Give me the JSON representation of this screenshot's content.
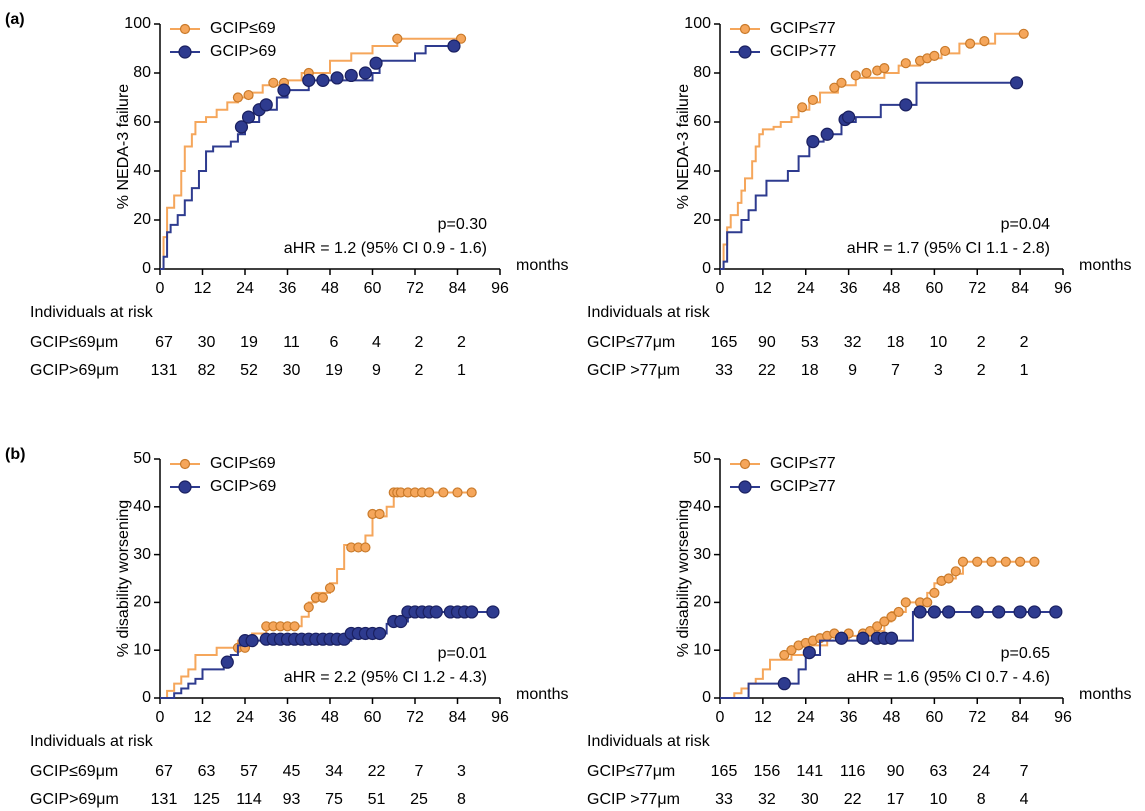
{
  "chart_data": [
    {
      "type": "step",
      "panel_label": "(a)",
      "y_label": "% NEDA-3 failure",
      "x_label": "months",
      "xlim": [
        0,
        96
      ],
      "xticks": [
        0,
        12,
        24,
        36,
        48,
        60,
        72,
        84,
        96
      ],
      "ylim": [
        0,
        100
      ],
      "yticks": [
        0,
        20,
        40,
        60,
        80,
        100
      ],
      "annotations": [
        {
          "text": "p=0.30",
          "color": "#000000"
        },
        {
          "text": "aHR = 1.2 (95% CI 0.9 - 1.6)",
          "color": "#000000"
        }
      ],
      "series": [
        {
          "name": "GCIP≤69",
          "color": "#f5a65b",
          "x": [
            0,
            1,
            2,
            4,
            6,
            7,
            9,
            10,
            13,
            16,
            19,
            22,
            26,
            29,
            36,
            40,
            48,
            54,
            60,
            67,
            85
          ],
          "values": [
            0,
            13,
            25,
            30,
            40,
            50,
            55,
            60,
            62,
            65,
            68,
            70,
            72,
            75,
            77,
            80,
            85,
            88,
            91,
            94,
            94
          ],
          "censored": {
            "x": [
              22,
              25,
              32,
              35,
              42,
              67,
              85
            ],
            "values": [
              70,
              71,
              76,
              76,
              80,
              94,
              94
            ]
          }
        },
        {
          "name": "GCIP>69",
          "color": "#2e3b8f",
          "x": [
            0,
            1,
            2,
            3,
            5,
            7,
            9,
            11,
            13,
            15,
            20,
            22,
            24,
            28,
            33,
            36,
            42,
            60,
            62,
            72,
            75,
            83
          ],
          "values": [
            0,
            5,
            15,
            18,
            22,
            28,
            33,
            40,
            48,
            50,
            52,
            55,
            60,
            65,
            70,
            73,
            77,
            80,
            85,
            88,
            91,
            91
          ],
          "censored": {
            "x": [
              23,
              25,
              28,
              30,
              35,
              42,
              46,
              50,
              54,
              58,
              61,
              83
            ],
            "values": [
              58,
              62,
              65,
              67,
              73,
              77,
              77,
              78,
              79,
              80,
              84,
              91
            ]
          }
        }
      ],
      "risk_table": {
        "title": "Individuals at risk",
        "rows": [
          {
            "name": "GCIP≤69μm",
            "values": [
              67,
              30,
              19,
              11,
              6,
              4,
              2,
              2
            ]
          },
          {
            "name": "GCIP>69μm",
            "values": [
              131,
              82,
              52,
              30,
              19,
              9,
              2,
              1
            ]
          }
        ]
      }
    },
    {
      "type": "step",
      "y_label": "% NEDA-3 failure",
      "x_label": "months",
      "xlim": [
        0,
        96
      ],
      "xticks": [
        0,
        12,
        24,
        36,
        48,
        60,
        72,
        84,
        96
      ],
      "ylim": [
        0,
        100
      ],
      "yticks": [
        0,
        20,
        40,
        60,
        80,
        100
      ],
      "annotations": [
        {
          "text": "p=0.04",
          "color": "#4a4aa8"
        },
        {
          "text": "aHR = 1.7 (95% CI 1.1 - 2.8)",
          "color": "#000000"
        }
      ],
      "series": [
        {
          "name": "GCIP≤77",
          "color": "#f5a65b",
          "x": [
            0,
            1,
            2,
            3,
            5,
            6,
            7,
            9,
            10,
            11,
            12,
            15,
            17,
            20,
            22,
            25,
            28,
            33,
            38,
            46,
            50,
            56,
            62,
            67,
            77,
            85
          ],
          "values": [
            0,
            10,
            17,
            22,
            27,
            32,
            37,
            44,
            50,
            55,
            57,
            58,
            60,
            62,
            65,
            68,
            72,
            75,
            78,
            80,
            83,
            86,
            88,
            92,
            96,
            96
          ],
          "censored": {
            "x": [
              23,
              26,
              32,
              34,
              38,
              41,
              44,
              46,
              52,
              56,
              58,
              60,
              63,
              70,
              74,
              85
            ],
            "values": [
              66,
              69,
              74,
              76,
              79,
              80,
              81,
              82,
              84,
              85,
              86,
              87,
              89,
              92,
              93,
              96
            ]
          }
        },
        {
          "name": "GCIP>77",
          "color": "#2e3b8f",
          "x": [
            0,
            1,
            2,
            6,
            8,
            10,
            13,
            19,
            22,
            25,
            29,
            34,
            38,
            45,
            52,
            55,
            83
          ],
          "values": [
            0,
            3,
            15,
            20,
            24,
            30,
            36,
            40,
            46,
            52,
            55,
            60,
            62,
            67,
            67,
            76,
            76
          ],
          "censored": {
            "x": [
              26,
              30,
              35,
              36,
              52,
              83
            ],
            "values": [
              52,
              55,
              61,
              62,
              67,
              76
            ]
          }
        }
      ],
      "risk_table": {
        "title": "Individuals at risk",
        "rows": [
          {
            "name": "GCIP≤77μm",
            "values": [
              165,
              90,
              53,
              32,
              18,
              10,
              2,
              2
            ]
          },
          {
            "name": "GCIP >77μm",
            "values": [
              33,
              22,
              18,
              9,
              7,
              3,
              2,
              1
            ]
          }
        ]
      }
    },
    {
      "type": "step",
      "panel_label": "(b)",
      "y_label": "% disability worsening",
      "x_label": "months",
      "xlim": [
        0,
        96
      ],
      "xticks": [
        0,
        12,
        24,
        36,
        48,
        60,
        72,
        84,
        96
      ],
      "ylim": [
        0,
        50
      ],
      "yticks": [
        0,
        10,
        20,
        30,
        40,
        50
      ],
      "annotations": [
        {
          "text": "p=0.01",
          "color": "#4a4aa8"
        },
        {
          "text": "aHR = 2.2 (95% CI 1.2 - 4.3)",
          "color": "#000000"
        }
      ],
      "series": [
        {
          "name": "GCIP≤69",
          "color": "#f5a65b",
          "x": [
            0,
            2,
            4,
            6,
            8,
            10,
            16,
            22,
            26,
            30,
            40,
            42,
            44,
            48,
            50,
            52,
            58,
            60,
            64,
            66,
            88
          ],
          "values": [
            0,
            1.5,
            3,
            4.5,
            6,
            9,
            10.5,
            12,
            13.5,
            15,
            17,
            20,
            22,
            24,
            27,
            32,
            34,
            38,
            40,
            43,
            43
          ],
          "censored": {
            "x": [
              22,
              24,
              30,
              32,
              34,
              36,
              38,
              42,
              44,
              46,
              48,
              54,
              56,
              58,
              60,
              62,
              66,
              67,
              68,
              70,
              72,
              74,
              76,
              80,
              84,
              88
            ],
            "values": [
              10.5,
              10.5,
              15,
              15,
              15,
              15,
              15,
              19,
              21,
              21,
              23,
              31.5,
              31.5,
              31.5,
              38.5,
              38.5,
              43,
              43,
              43,
              43,
              43,
              43,
              43,
              43,
              43,
              43
            ]
          }
        },
        {
          "name": "GCIP>69",
          "color": "#2e3b8f",
          "x": [
            0,
            4,
            6,
            8,
            10,
            12,
            18,
            20,
            22,
            24,
            54,
            64,
            66,
            70,
            94
          ],
          "values": [
            0,
            1,
            2,
            3,
            4,
            6,
            7.5,
            9,
            11,
            12,
            13.5,
            15.5,
            16,
            18,
            18
          ],
          "censored": {
            "x": [
              19,
              24,
              26,
              30,
              32,
              34,
              36,
              38,
              40,
              42,
              44,
              46,
              48,
              50,
              52,
              54,
              56,
              58,
              60,
              62,
              66,
              68,
              70,
              72,
              74,
              76,
              78,
              82,
              84,
              86,
              88,
              94
            ],
            "values": [
              7.5,
              12,
              12,
              12.3,
              12.3,
              12.3,
              12.3,
              12.3,
              12.3,
              12.3,
              12.3,
              12.3,
              12.3,
              12.3,
              12.3,
              13.5,
              13.5,
              13.5,
              13.5,
              13.5,
              16,
              16,
              18,
              18,
              18,
              18,
              18,
              18,
              18,
              18,
              18,
              18
            ]
          }
        }
      ],
      "risk_table": {
        "title": "Individuals at risk",
        "rows": [
          {
            "name": "GCIP≤69μm",
            "values": [
              67,
              63,
              57,
              45,
              34,
              22,
              7,
              3
            ]
          },
          {
            "name": "GCIP>69μm",
            "values": [
              131,
              125,
              114,
              93,
              75,
              51,
              25,
              8
            ]
          }
        ]
      }
    },
    {
      "type": "step",
      "y_label": "% disability worsening",
      "x_label": "months",
      "xlim": [
        0,
        96
      ],
      "xticks": [
        0,
        12,
        24,
        36,
        48,
        60,
        72,
        84,
        96
      ],
      "ylim": [
        0,
        50
      ],
      "yticks": [
        0,
        10,
        20,
        30,
        40,
        50
      ],
      "annotations": [
        {
          "text": "p=0.65",
          "color": "#000000"
        },
        {
          "text": "aHR = 1.6 (95% CI 0.7 - 4.6)",
          "color": "#000000"
        }
      ],
      "series": [
        {
          "name": "GCIP≤77",
          "color": "#f5a65b",
          "x": [
            0,
            4,
            6,
            8,
            10,
            12,
            14,
            20,
            24,
            30,
            36,
            42,
            46,
            48,
            52,
            58,
            60,
            62,
            66,
            68,
            89
          ],
          "values": [
            0,
            1,
            2,
            3,
            4,
            6,
            8,
            9,
            11,
            12,
            13,
            14,
            16,
            18,
            20,
            22,
            24,
            25,
            26,
            28.5,
            28.5
          ],
          "censored": {
            "x": [
              18,
              20,
              22,
              24,
              26,
              28,
              30,
              32,
              36,
              40,
              42,
              44,
              46,
              48,
              50,
              52,
              56,
              58,
              60,
              62,
              64,
              66,
              68,
              72,
              76,
              80,
              84,
              88
            ],
            "values": [
              9,
              10,
              11,
              11.5,
              12,
              12.5,
              13,
              13.5,
              13.5,
              13.5,
              14,
              15,
              16,
              17,
              18,
              20,
              20,
              20,
              22,
              24.5,
              25,
              26.5,
              28.5,
              28.5,
              28.5,
              28.5,
              28.5,
              28.5
            ]
          }
        },
        {
          "name": "GCIP≥77",
          "color": "#2e3b8f",
          "x": [
            0,
            8,
            22,
            24,
            28,
            54,
            94
          ],
          "values": [
            0,
            3,
            6,
            9,
            12,
            18,
            18
          ],
          "censored": {
            "x": [
              18,
              25,
              34,
              40,
              44,
              46,
              48,
              56,
              60,
              64,
              72,
              78,
              84,
              88,
              94
            ],
            "values": [
              3,
              9.5,
              12.5,
              12.5,
              12.5,
              12.5,
              12.5,
              18,
              18,
              18,
              18,
              18,
              18,
              18,
              18
            ]
          }
        }
      ],
      "risk_table": {
        "title": "Individuals at risk",
        "rows": [
          {
            "name": "GCIP≤77μm",
            "values": [
              165,
              156,
              141,
              116,
              90,
              63,
              24,
              7
            ]
          },
          {
            "name": "GCIP >77μm",
            "values": [
              33,
              32,
              30,
              22,
              17,
              10,
              8,
              4
            ]
          }
        ]
      }
    }
  ]
}
